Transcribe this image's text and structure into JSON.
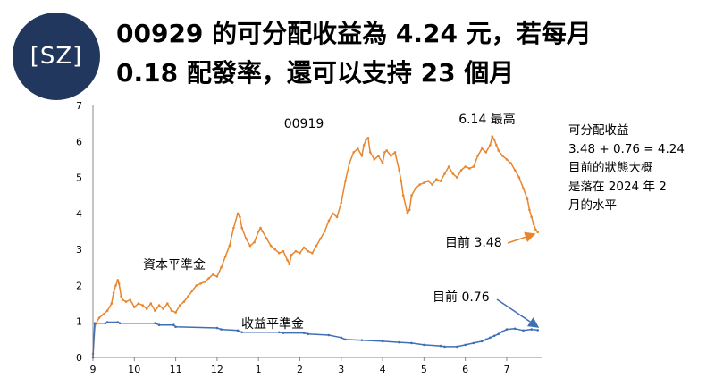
{
  "header": {
    "logo_text": "[SZ]",
    "title_line1": "00929 的可分配收益為 4.24 元，若每月",
    "title_line2": "0.18 配發率，還可以支持 23 個月"
  },
  "side_note": {
    "lines": [
      "可分配收益",
      "3.48 + 0.76 = 4.24",
      "目前的狀態大概",
      "是落在 2024 年 2",
      "月的水平"
    ]
  },
  "colors": {
    "capital_line": "#e8862f",
    "income_line": "#3f6fb5",
    "logo_bg": "#22375e"
  },
  "chart_data": {
    "type": "line",
    "title": "00919",
    "x_categories": [
      "9",
      "10",
      "11",
      "12",
      "1",
      "2",
      "3",
      "4",
      "5",
      "6",
      "7"
    ],
    "ylim": [
      0,
      7
    ],
    "yticks": [
      0,
      1,
      2,
      3,
      4,
      5,
      6,
      7
    ],
    "grid": false,
    "annotations": [
      {
        "id": "peak",
        "text": "6.14 最高"
      },
      {
        "id": "current-capital",
        "text": "目前 3.48"
      },
      {
        "id": "current-income",
        "text": "目前 0.76"
      }
    ],
    "series": [
      {
        "name": "資本平準金",
        "color": "#e8862f",
        "points": [
          [
            0.0,
            0.1
          ],
          [
            0.05,
            0.9
          ],
          [
            0.15,
            1.1
          ],
          [
            0.25,
            1.2
          ],
          [
            0.35,
            1.3
          ],
          [
            0.45,
            1.5
          ],
          [
            0.5,
            1.8
          ],
          [
            0.55,
            2.0
          ],
          [
            0.6,
            2.15
          ],
          [
            0.63,
            2.05
          ],
          [
            0.68,
            1.7
          ],
          [
            0.72,
            1.6
          ],
          [
            0.8,
            1.55
          ],
          [
            0.9,
            1.6
          ],
          [
            1.0,
            1.4
          ],
          [
            1.1,
            1.5
          ],
          [
            1.2,
            1.45
          ],
          [
            1.3,
            1.35
          ],
          [
            1.4,
            1.5
          ],
          [
            1.5,
            1.3
          ],
          [
            1.6,
            1.45
          ],
          [
            1.7,
            1.35
          ],
          [
            1.8,
            1.5
          ],
          [
            1.9,
            1.3
          ],
          [
            2.0,
            1.25
          ],
          [
            2.1,
            1.45
          ],
          [
            2.2,
            1.55
          ],
          [
            2.3,
            1.7
          ],
          [
            2.4,
            1.85
          ],
          [
            2.5,
            2.0
          ],
          [
            2.6,
            2.05
          ],
          [
            2.7,
            2.1
          ],
          [
            2.8,
            2.2
          ],
          [
            2.9,
            2.3
          ],
          [
            3.0,
            2.25
          ],
          [
            3.1,
            2.5
          ],
          [
            3.2,
            2.8
          ],
          [
            3.3,
            3.1
          ],
          [
            3.4,
            3.6
          ],
          [
            3.5,
            4.0
          ],
          [
            3.55,
            3.9
          ],
          [
            3.6,
            3.6
          ],
          [
            3.7,
            3.3
          ],
          [
            3.8,
            3.1
          ],
          [
            3.9,
            3.2
          ],
          [
            4.0,
            3.5
          ],
          [
            4.05,
            3.6
          ],
          [
            4.1,
            3.5
          ],
          [
            4.2,
            3.3
          ],
          [
            4.3,
            3.1
          ],
          [
            4.4,
            3.0
          ],
          [
            4.5,
            2.9
          ],
          [
            4.6,
            2.95
          ],
          [
            4.7,
            2.7
          ],
          [
            4.75,
            2.6
          ],
          [
            4.8,
            2.85
          ],
          [
            4.9,
            2.95
          ],
          [
            5.0,
            2.9
          ],
          [
            5.1,
            3.05
          ],
          [
            5.2,
            2.95
          ],
          [
            5.3,
            2.9
          ],
          [
            5.4,
            3.1
          ],
          [
            5.5,
            3.3
          ],
          [
            5.6,
            3.5
          ],
          [
            5.7,
            3.8
          ],
          [
            5.8,
            4.0
          ],
          [
            5.9,
            3.9
          ],
          [
            6.0,
            4.3
          ],
          [
            6.1,
            4.9
          ],
          [
            6.2,
            5.4
          ],
          [
            6.3,
            5.7
          ],
          [
            6.4,
            5.8
          ],
          [
            6.5,
            5.6
          ],
          [
            6.55,
            5.9
          ],
          [
            6.6,
            6.05
          ],
          [
            6.65,
            6.1
          ],
          [
            6.7,
            5.7
          ],
          [
            6.8,
            5.5
          ],
          [
            6.9,
            5.6
          ],
          [
            7.0,
            5.4
          ],
          [
            7.05,
            5.7
          ],
          [
            7.1,
            5.75
          ],
          [
            7.2,
            5.6
          ],
          [
            7.3,
            5.7
          ],
          [
            7.4,
            5.2
          ],
          [
            7.45,
            4.9
          ],
          [
            7.5,
            4.5
          ],
          [
            7.6,
            4.0
          ],
          [
            7.65,
            4.1
          ],
          [
            7.7,
            4.5
          ],
          [
            7.8,
            4.7
          ],
          [
            7.9,
            4.8
          ],
          [
            8.0,
            4.85
          ],
          [
            8.1,
            4.9
          ],
          [
            8.2,
            4.8
          ],
          [
            8.3,
            4.95
          ],
          [
            8.4,
            4.9
          ],
          [
            8.5,
            5.1
          ],
          [
            8.6,
            5.3
          ],
          [
            8.7,
            5.1
          ],
          [
            8.8,
            5.0
          ],
          [
            8.9,
            5.2
          ],
          [
            9.0,
            5.3
          ],
          [
            9.1,
            5.25
          ],
          [
            9.2,
            5.3
          ],
          [
            9.3,
            5.6
          ],
          [
            9.4,
            5.8
          ],
          [
            9.5,
            5.7
          ],
          [
            9.6,
            5.9
          ],
          [
            9.65,
            6.14
          ],
          [
            9.7,
            6.05
          ],
          [
            9.75,
            5.9
          ],
          [
            9.8,
            5.75
          ],
          [
            9.9,
            5.6
          ],
          [
            10.0,
            5.5
          ],
          [
            10.1,
            5.4
          ],
          [
            10.2,
            5.2
          ],
          [
            10.3,
            5.0
          ],
          [
            10.4,
            4.7
          ],
          [
            10.5,
            4.4
          ],
          [
            10.55,
            4.1
          ],
          [
            10.6,
            3.9
          ],
          [
            10.65,
            3.7
          ],
          [
            10.7,
            3.55
          ],
          [
            10.75,
            3.48
          ]
        ]
      },
      {
        "name": "收益平準金",
        "color": "#3f6fb5",
        "points": [
          [
            0.0,
            0.0
          ],
          [
            0.04,
            0.95
          ],
          [
            0.3,
            0.95
          ],
          [
            0.35,
            0.98
          ],
          [
            0.6,
            0.98
          ],
          [
            0.65,
            0.95
          ],
          [
            1.5,
            0.95
          ],
          [
            1.6,
            0.9
          ],
          [
            1.95,
            0.9
          ],
          [
            2.0,
            0.85
          ],
          [
            3.0,
            0.82
          ],
          [
            3.1,
            0.78
          ],
          [
            3.5,
            0.75
          ],
          [
            3.6,
            0.7
          ],
          [
            4.5,
            0.7
          ],
          [
            4.6,
            0.68
          ],
          [
            5.1,
            0.68
          ],
          [
            5.2,
            0.65
          ],
          [
            5.7,
            0.62
          ],
          [
            6.0,
            0.55
          ],
          [
            6.1,
            0.5
          ],
          [
            6.5,
            0.48
          ],
          [
            7.0,
            0.45
          ],
          [
            7.4,
            0.42
          ],
          [
            7.7,
            0.4
          ],
          [
            8.0,
            0.35
          ],
          [
            8.4,
            0.32
          ],
          [
            8.5,
            0.3
          ],
          [
            8.8,
            0.3
          ],
          [
            9.0,
            0.35
          ],
          [
            9.2,
            0.4
          ],
          [
            9.4,
            0.45
          ],
          [
            9.5,
            0.5
          ],
          [
            9.6,
            0.55
          ],
          [
            9.7,
            0.6
          ],
          [
            9.8,
            0.65
          ],
          [
            9.9,
            0.72
          ],
          [
            10.0,
            0.78
          ],
          [
            10.2,
            0.8
          ],
          [
            10.4,
            0.75
          ],
          [
            10.6,
            0.78
          ],
          [
            10.75,
            0.76
          ]
        ]
      }
    ]
  }
}
